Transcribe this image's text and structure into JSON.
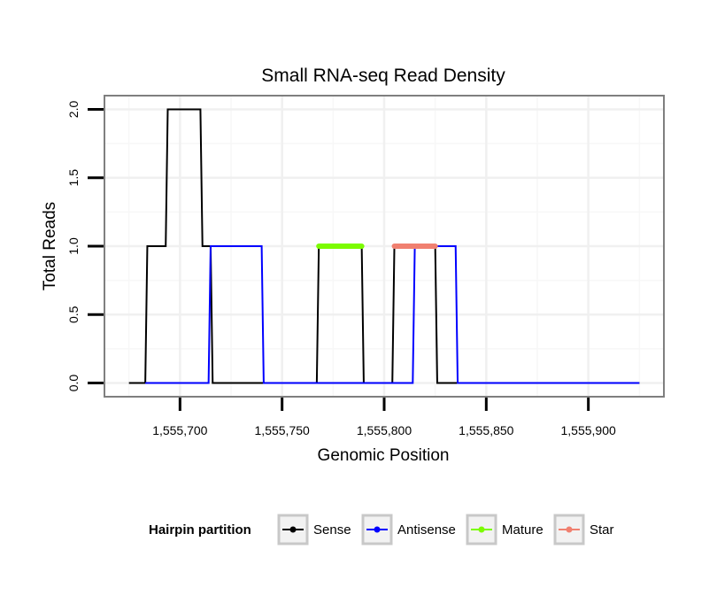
{
  "chart_data": {
    "type": "line",
    "title": "Small RNA-seq Read Density",
    "xlabel": "Genomic Position",
    "ylabel": "Total Reads",
    "xlim": [
      1555663,
      1555937
    ],
    "ylim": [
      -0.1,
      2.1
    ],
    "x_ticks": [
      1555700,
      1555750,
      1555800,
      1555850,
      1555900
    ],
    "x_tick_labels": [
      "1,555,700",
      "1,555,750",
      "1,555,800",
      "1,555,850",
      "1,555,900"
    ],
    "y_ticks": [
      0.0,
      0.5,
      1.0,
      1.5,
      2.0
    ],
    "y_tick_labels": [
      "0.0",
      "0.5",
      "1.0",
      "1.5",
      "2.0"
    ],
    "grid": true,
    "legend": {
      "title": "Hairpin partition",
      "position": "bottom",
      "entries": [
        {
          "name": "Sense",
          "color": "#000000"
        },
        {
          "name": "Antisense",
          "color": "#0000ff"
        },
        {
          "name": "Mature",
          "color": "#7cfc00"
        },
        {
          "name": "Star",
          "color": "#f08070"
        }
      ]
    },
    "series": [
      {
        "name": "Sense",
        "color": "#000000",
        "x": [
          1555675,
          1555683,
          1555684,
          1555693,
          1555694,
          1555710,
          1555711,
          1555715,
          1555716,
          1555767,
          1555768,
          1555789,
          1555790,
          1555804,
          1555805,
          1555825,
          1555826,
          1555925
        ],
        "y": [
          0,
          0,
          1,
          1,
          2,
          2,
          1,
          1,
          0,
          0,
          1,
          1,
          0,
          0,
          1,
          1,
          0,
          0
        ]
      },
      {
        "name": "Antisense",
        "color": "#0000ff",
        "x": [
          1555683,
          1555714,
          1555715,
          1555740,
          1555741,
          1555814,
          1555815,
          1555835,
          1555836,
          1555925
        ],
        "y": [
          0,
          0,
          1,
          1,
          0,
          0,
          1,
          1,
          0,
          0
        ]
      },
      {
        "name": "Mature",
        "color": "#7cfc00",
        "x": [
          1555768,
          1555789
        ],
        "y": [
          1,
          1
        ]
      },
      {
        "name": "Star",
        "color": "#f08070",
        "x": [
          1555805,
          1555825
        ],
        "y": [
          1,
          1
        ]
      }
    ]
  }
}
